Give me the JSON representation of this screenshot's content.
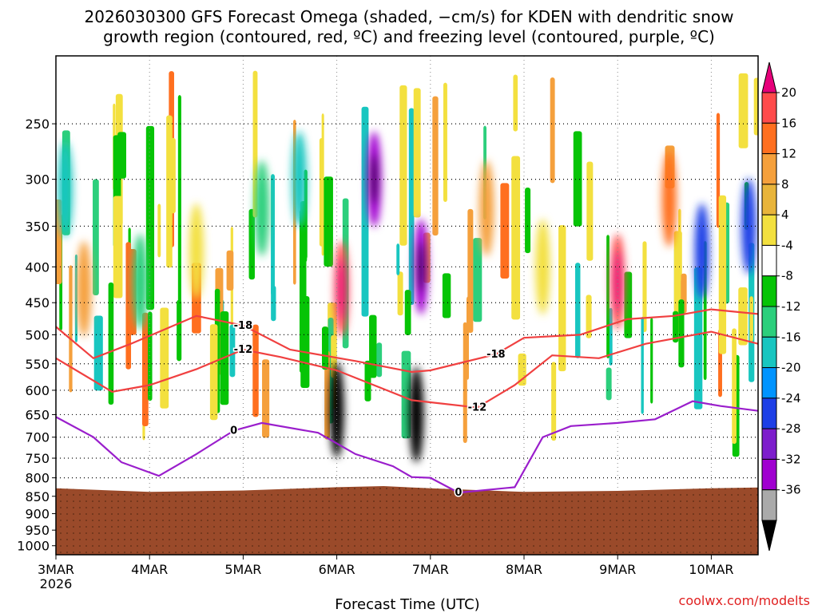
{
  "chart_data": {
    "type": "heatmap",
    "model_run": "2026030300",
    "title_line1": "2026030300 GFS Forecast Omega (shaded, −cm/s) for KDEN with dendritic snow",
    "title_line2": "growth region (contoured, red, ºC) and freezing level (contoured, purple, ºC)",
    "xlabel": "Forecast Time (UTC)",
    "ylabel": "",
    "watermark": "coolwx.com/modelts",
    "y_ticks": [
      "250",
      "300",
      "350",
      "400",
      "450",
      "500",
      "550",
      "600",
      "650",
      "700",
      "750",
      "800",
      "850",
      "900",
      "950",
      "1000"
    ],
    "y_values": [
      250,
      300,
      350,
      400,
      450,
      500,
      550,
      600,
      650,
      700,
      750,
      800,
      850,
      900,
      950,
      1000
    ],
    "ylim": [
      200,
      1030
    ],
    "x_ticks": [
      "3MAR",
      "4MAR",
      "5MAR",
      "6MAR",
      "7MAR",
      "8MAR",
      "9MAR",
      "10MAR"
    ],
    "x_year": "2026",
    "xlim": [
      0,
      7.5
    ],
    "colorbar": {
      "labels": [
        "20",
        "16",
        "12",
        "8",
        "4",
        "-4",
        "-8",
        "-12",
        "-16",
        "-20",
        "-24",
        "-28",
        "-32",
        "-36"
      ],
      "colors": [
        "#e6007a",
        "#ff4b4b",
        "#ff6f1f",
        "#f5a03c",
        "#e8b43a",
        "#f3e03f",
        "#ffffff",
        "#06c406",
        "#2ccf7c",
        "#18c6c0",
        "#0094ff",
        "#1d3fe6",
        "#7d1dcc",
        "#a000d0",
        "#aaaaaa",
        "#000000"
      ]
    },
    "terrain_color": "#9a4a2a",
    "contours": [
      {
        "label": "-18",
        "color": "#f04040",
        "points": [
          [
            0,
            487
          ],
          [
            0.4,
            540
          ],
          [
            0.8,
            515
          ],
          [
            1.5,
            470
          ],
          [
            2.0,
            485
          ],
          [
            2.5,
            525
          ],
          [
            3.2,
            545
          ],
          [
            3.8,
            565
          ],
          [
            4.0,
            562
          ],
          [
            4.7,
            533
          ],
          [
            5.0,
            505
          ],
          [
            5.6,
            500
          ],
          [
            6.1,
            475
          ],
          [
            6.6,
            470
          ],
          [
            7.0,
            460
          ],
          [
            7.5,
            467
          ]
        ]
      },
      {
        "label": "-12",
        "color": "#f04040",
        "points": [
          [
            0,
            540
          ],
          [
            0.6,
            603
          ],
          [
            1.0,
            590
          ],
          [
            1.5,
            560
          ],
          [
            2.0,
            525
          ],
          [
            2.4,
            538
          ],
          [
            3.0,
            562
          ],
          [
            3.8,
            620
          ],
          [
            4.5,
            635
          ],
          [
            4.9,
            590
          ],
          [
            5.3,
            535
          ],
          [
            5.8,
            540
          ],
          [
            6.3,
            515
          ],
          [
            7.0,
            495
          ],
          [
            7.5,
            515
          ]
        ]
      },
      {
        "label": "0",
        "color": "#9a1ecc",
        "points": [
          [
            0,
            655
          ],
          [
            0.4,
            700
          ],
          [
            0.7,
            760
          ],
          [
            1.1,
            795
          ],
          [
            1.5,
            740
          ],
          [
            1.9,
            685
          ],
          [
            2.2,
            668
          ],
          [
            2.8,
            690
          ],
          [
            3.2,
            740
          ],
          [
            3.6,
            770
          ],
          [
            3.8,
            798
          ],
          [
            4.0,
            800
          ],
          [
            4.3,
            840
          ],
          [
            4.9,
            825
          ],
          [
            5.2,
            700
          ],
          [
            5.5,
            675
          ],
          [
            6.0,
            668
          ],
          [
            6.4,
            660
          ],
          [
            6.8,
            622
          ],
          [
            7.1,
            632
          ],
          [
            7.5,
            642
          ]
        ]
      }
    ],
    "omega_cells": [
      {
        "t": 0.1,
        "p": 310,
        "v": -14
      },
      {
        "t": 0.3,
        "p": 430,
        "v": 10
      },
      {
        "t": 0.9,
        "p": 420,
        "v": -10
      },
      {
        "t": 1.5,
        "p": 380,
        "v": 6
      },
      {
        "t": 2.2,
        "p": 330,
        "v": -8
      },
      {
        "t": 2.6,
        "p": 300,
        "v": -12
      },
      {
        "t": 3.05,
        "p": 430,
        "v": 18
      },
      {
        "t": 3.0,
        "p": 640,
        "v": -36
      },
      {
        "t": 3.4,
        "p": 300,
        "v": -30
      },
      {
        "t": 3.9,
        "p": 400,
        "v": -28
      },
      {
        "t": 3.85,
        "p": 650,
        "v": -36
      },
      {
        "t": 4.6,
        "p": 330,
        "v": 8
      },
      {
        "t": 5.2,
        "p": 400,
        "v": 6
      },
      {
        "t": 6.0,
        "p": 420,
        "v": 16
      },
      {
        "t": 6.55,
        "p": 320,
        "v": 12
      },
      {
        "t": 6.9,
        "p": 380,
        "v": -22
      },
      {
        "t": 7.4,
        "p": 350,
        "v": -20
      }
    ]
  }
}
